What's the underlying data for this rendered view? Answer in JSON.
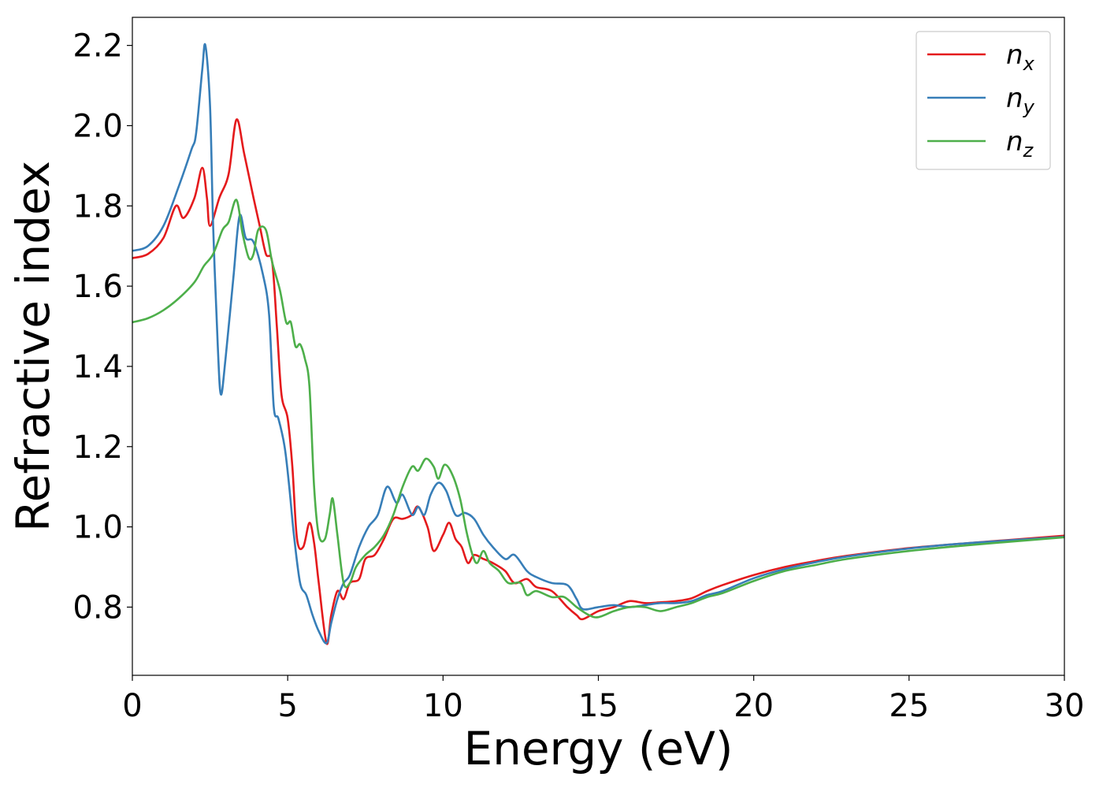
{
  "chart_data": {
    "type": "line",
    "title": "",
    "xlabel": "Energy (eV)",
    "ylabel": "Refractive index",
    "xlim": [
      0,
      30
    ],
    "ylim": [
      0.63,
      2.27
    ],
    "xticks": [
      0,
      5,
      10,
      15,
      20,
      25,
      30
    ],
    "xtick_labels": [
      "0",
      "5",
      "10",
      "15",
      "20",
      "25",
      "30"
    ],
    "yticks": [
      0.8,
      1.0,
      1.2,
      1.4,
      1.6,
      1.8,
      2.0,
      2.2
    ],
    "ytick_labels": [
      "0.8",
      "1.0",
      "1.2",
      "1.4",
      "1.6",
      "1.8",
      "2.0",
      "2.2"
    ],
    "grid": false,
    "legend_position": "top-right",
    "series": [
      {
        "name": "n_x",
        "legend_base": "n",
        "legend_sub": "x",
        "color": "#e41a1c",
        "points": [
          [
            0,
            1.67
          ],
          [
            0.5,
            1.68
          ],
          [
            1.0,
            1.72
          ],
          [
            1.4,
            1.8
          ],
          [
            1.65,
            1.77
          ],
          [
            2.0,
            1.82
          ],
          [
            2.25,
            1.895
          ],
          [
            2.4,
            1.82
          ],
          [
            2.5,
            1.75
          ],
          [
            2.8,
            1.82
          ],
          [
            3.1,
            1.88
          ],
          [
            3.35,
            2.015
          ],
          [
            3.6,
            1.93
          ],
          [
            3.9,
            1.82
          ],
          [
            4.1,
            1.75
          ],
          [
            4.3,
            1.68
          ],
          [
            4.5,
            1.66
          ],
          [
            4.65,
            1.5
          ],
          [
            4.8,
            1.33
          ],
          [
            5.0,
            1.27
          ],
          [
            5.15,
            1.15
          ],
          [
            5.3,
            0.97
          ],
          [
            5.5,
            0.95
          ],
          [
            5.7,
            1.01
          ],
          [
            5.85,
            0.96
          ],
          [
            6.0,
            0.86
          ],
          [
            6.25,
            0.71
          ],
          [
            6.4,
            0.78
          ],
          [
            6.6,
            0.84
          ],
          [
            6.8,
            0.82
          ],
          [
            7.0,
            0.86
          ],
          [
            7.3,
            0.87
          ],
          [
            7.5,
            0.92
          ],
          [
            7.8,
            0.93
          ],
          [
            8.1,
            0.97
          ],
          [
            8.4,
            1.02
          ],
          [
            8.7,
            1.02
          ],
          [
            9.0,
            1.03
          ],
          [
            9.2,
            1.05
          ],
          [
            9.5,
            1.0
          ],
          [
            9.7,
            0.94
          ],
          [
            10.0,
            0.98
          ],
          [
            10.2,
            1.01
          ],
          [
            10.4,
            0.97
          ],
          [
            10.6,
            0.95
          ],
          [
            10.8,
            0.91
          ],
          [
            11.0,
            0.93
          ],
          [
            11.3,
            0.92
          ],
          [
            11.6,
            0.91
          ],
          [
            12.0,
            0.89
          ],
          [
            12.3,
            0.86
          ],
          [
            12.7,
            0.87
          ],
          [
            13.0,
            0.85
          ],
          [
            13.5,
            0.84
          ],
          [
            14.0,
            0.8
          ],
          [
            14.3,
            0.78
          ],
          [
            14.5,
            0.77
          ],
          [
            15.0,
            0.79
          ],
          [
            15.5,
            0.8
          ],
          [
            16.0,
            0.815
          ],
          [
            16.5,
            0.81
          ],
          [
            17.0,
            0.812
          ],
          [
            17.5,
            0.815
          ],
          [
            18.0,
            0.822
          ],
          [
            18.5,
            0.84
          ],
          [
            19.0,
            0.855
          ],
          [
            20.0,
            0.88
          ],
          [
            21.0,
            0.9
          ],
          [
            22.0,
            0.915
          ],
          [
            23.0,
            0.928
          ],
          [
            25.0,
            0.947
          ],
          [
            27.0,
            0.96
          ],
          [
            30.0,
            0.978
          ]
        ]
      },
      {
        "name": "n_y",
        "legend_base": "n",
        "legend_sub": "y",
        "color": "#377eb8",
        "points": [
          [
            0,
            1.688
          ],
          [
            0.5,
            1.7
          ],
          [
            1.0,
            1.75
          ],
          [
            1.5,
            1.85
          ],
          [
            1.9,
            1.94
          ],
          [
            2.05,
            1.98
          ],
          [
            2.25,
            2.14
          ],
          [
            2.35,
            2.2
          ],
          [
            2.5,
            2.05
          ],
          [
            2.6,
            1.75
          ],
          [
            2.75,
            1.45
          ],
          [
            2.85,
            1.33
          ],
          [
            3.0,
            1.42
          ],
          [
            3.25,
            1.62
          ],
          [
            3.45,
            1.775
          ],
          [
            3.65,
            1.72
          ],
          [
            3.9,
            1.71
          ],
          [
            4.2,
            1.63
          ],
          [
            4.4,
            1.53
          ],
          [
            4.55,
            1.3
          ],
          [
            4.7,
            1.27
          ],
          [
            4.9,
            1.2
          ],
          [
            5.05,
            1.1
          ],
          [
            5.2,
            0.98
          ],
          [
            5.4,
            0.86
          ],
          [
            5.6,
            0.83
          ],
          [
            5.8,
            0.78
          ],
          [
            6.0,
            0.74
          ],
          [
            6.25,
            0.71
          ],
          [
            6.4,
            0.76
          ],
          [
            6.6,
            0.82
          ],
          [
            6.8,
            0.86
          ],
          [
            7.0,
            0.88
          ],
          [
            7.3,
            0.95
          ],
          [
            7.6,
            1.0
          ],
          [
            7.9,
            1.03
          ],
          [
            8.2,
            1.1
          ],
          [
            8.5,
            1.06
          ],
          [
            8.7,
            1.08
          ],
          [
            9.0,
            1.03
          ],
          [
            9.2,
            1.05
          ],
          [
            9.4,
            1.03
          ],
          [
            9.6,
            1.08
          ],
          [
            9.85,
            1.11
          ],
          [
            10.1,
            1.09
          ],
          [
            10.4,
            1.03
          ],
          [
            10.7,
            1.035
          ],
          [
            11.0,
            1.02
          ],
          [
            11.3,
            0.98
          ],
          [
            11.6,
            0.95
          ],
          [
            12.0,
            0.92
          ],
          [
            12.3,
            0.93
          ],
          [
            12.7,
            0.89
          ],
          [
            13.0,
            0.875
          ],
          [
            13.5,
            0.86
          ],
          [
            14.0,
            0.855
          ],
          [
            14.3,
            0.82
          ],
          [
            14.5,
            0.795
          ],
          [
            15.0,
            0.8
          ],
          [
            15.5,
            0.805
          ],
          [
            16.0,
            0.8
          ],
          [
            16.5,
            0.805
          ],
          [
            17.0,
            0.81
          ],
          [
            17.5,
            0.81
          ],
          [
            18.0,
            0.815
          ],
          [
            18.5,
            0.83
          ],
          [
            19.0,
            0.84
          ],
          [
            20.0,
            0.872
          ],
          [
            21.0,
            0.895
          ],
          [
            22.0,
            0.912
          ],
          [
            23.0,
            0.926
          ],
          [
            25.0,
            0.946
          ],
          [
            27.0,
            0.96
          ],
          [
            30.0,
            0.975
          ]
        ]
      },
      {
        "name": "n_z",
        "legend_base": "n",
        "legend_sub": "z",
        "color": "#4daf4a",
        "points": [
          [
            0,
            1.51
          ],
          [
            0.5,
            1.52
          ],
          [
            1.0,
            1.54
          ],
          [
            1.5,
            1.57
          ],
          [
            2.0,
            1.61
          ],
          [
            2.3,
            1.65
          ],
          [
            2.6,
            1.68
          ],
          [
            2.9,
            1.74
          ],
          [
            3.1,
            1.76
          ],
          [
            3.35,
            1.815
          ],
          [
            3.55,
            1.73
          ],
          [
            3.75,
            1.67
          ],
          [
            3.9,
            1.68
          ],
          [
            4.05,
            1.74
          ],
          [
            4.3,
            1.74
          ],
          [
            4.5,
            1.66
          ],
          [
            4.75,
            1.59
          ],
          [
            4.95,
            1.51
          ],
          [
            5.1,
            1.51
          ],
          [
            5.25,
            1.45
          ],
          [
            5.4,
            1.455
          ],
          [
            5.55,
            1.42
          ],
          [
            5.7,
            1.35
          ],
          [
            5.85,
            1.1
          ],
          [
            6.0,
            0.98
          ],
          [
            6.2,
            0.97
          ],
          [
            6.35,
            1.03
          ],
          [
            6.45,
            1.07
          ],
          [
            6.6,
            0.98
          ],
          [
            6.8,
            0.86
          ],
          [
            7.0,
            0.86
          ],
          [
            7.2,
            0.9
          ],
          [
            7.5,
            0.93
          ],
          [
            7.8,
            0.95
          ],
          [
            8.1,
            0.98
          ],
          [
            8.4,
            1.03
          ],
          [
            8.7,
            1.1
          ],
          [
            9.0,
            1.15
          ],
          [
            9.2,
            1.14
          ],
          [
            9.45,
            1.17
          ],
          [
            9.7,
            1.15
          ],
          [
            9.85,
            1.12
          ],
          [
            10.05,
            1.155
          ],
          [
            10.3,
            1.13
          ],
          [
            10.55,
            1.07
          ],
          [
            10.75,
            0.99
          ],
          [
            10.95,
            0.93
          ],
          [
            11.1,
            0.91
          ],
          [
            11.3,
            0.94
          ],
          [
            11.5,
            0.91
          ],
          [
            11.8,
            0.89
          ],
          [
            12.1,
            0.86
          ],
          [
            12.5,
            0.86
          ],
          [
            12.7,
            0.83
          ],
          [
            13.0,
            0.84
          ],
          [
            13.5,
            0.825
          ],
          [
            13.9,
            0.825
          ],
          [
            14.3,
            0.8
          ],
          [
            14.7,
            0.78
          ],
          [
            15.0,
            0.775
          ],
          [
            15.5,
            0.79
          ],
          [
            16.0,
            0.8
          ],
          [
            16.5,
            0.8
          ],
          [
            17.0,
            0.79
          ],
          [
            17.5,
            0.8
          ],
          [
            18.0,
            0.81
          ],
          [
            18.5,
            0.825
          ],
          [
            19.0,
            0.835
          ],
          [
            20.0,
            0.865
          ],
          [
            21.0,
            0.89
          ],
          [
            22.0,
            0.905
          ],
          [
            23.0,
            0.92
          ],
          [
            25.0,
            0.94
          ],
          [
            27.0,
            0.955
          ],
          [
            30.0,
            0.974
          ]
        ]
      }
    ]
  }
}
